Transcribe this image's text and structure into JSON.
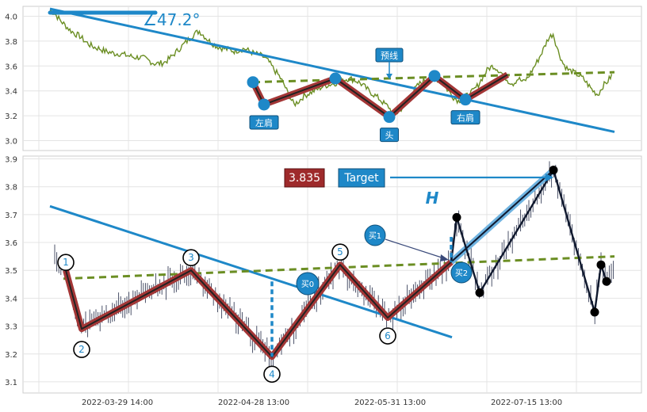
{
  "chart_data": [
    {
      "type": "line",
      "panel": "top",
      "ylim": [
        2.92,
        4.08
      ],
      "yticks": [
        "3.0",
        "3.2",
        "3.4",
        "3.6",
        "3.8",
        "4.0"
      ],
      "angle_label": "∠47.2°",
      "series": [
        {
          "kind": "price",
          "color": "#6b8e23",
          "values": [
            4.05,
            4.02,
            3.97,
            3.93,
            3.89,
            3.86,
            3.84,
            3.8,
            3.77,
            3.75,
            3.74,
            3.72,
            3.71,
            3.7,
            3.7,
            3.69,
            3.68,
            3.67,
            3.67,
            3.66,
            3.64,
            3.62,
            3.62,
            3.63,
            3.66,
            3.7,
            3.74,
            3.78,
            3.82,
            3.86,
            3.88,
            3.84,
            3.8,
            3.77,
            3.75,
            3.74,
            3.73,
            3.72,
            3.73,
            3.74,
            3.72,
            3.7,
            3.69,
            3.67,
            3.63,
            3.57,
            3.52,
            3.45,
            3.36,
            3.29,
            3.32,
            3.36,
            3.38,
            3.4,
            3.42,
            3.44,
            3.45,
            3.46,
            3.47,
            3.49,
            3.5,
            3.49,
            3.47,
            3.44,
            3.4,
            3.37,
            3.34,
            3.3,
            3.27,
            3.21,
            3.23,
            3.28,
            3.34,
            3.4,
            3.45,
            3.48,
            3.5,
            3.51,
            3.49,
            3.45,
            3.4,
            3.35,
            3.32,
            3.34,
            3.37,
            3.4,
            3.45,
            3.52,
            3.58,
            3.6,
            3.57,
            3.53,
            3.48,
            3.46,
            3.5,
            3.47,
            3.51,
            3.58,
            3.65,
            3.73,
            3.82,
            3.86,
            3.72,
            3.62,
            3.57,
            3.55,
            3.53,
            3.5,
            3.45,
            3.4,
            3.37,
            3.44,
            3.48,
            3.54
          ]
        }
      ],
      "trend_line": {
        "start": 4.06,
        "end": 3.07
      },
      "neckline": {
        "start": 3.47,
        "end": 3.55
      },
      "pattern_points": [
        {
          "label": "",
          "y": 3.47
        },
        {
          "label": "左肩",
          "y": 3.29
        },
        {
          "label": "",
          "y": 3.5
        },
        {
          "label": "头",
          "y": 3.19
        },
        {
          "label": "",
          "y": 3.52
        },
        {
          "label": "右肩",
          "y": 3.33
        },
        {
          "label": "",
          "y": 3.53
        }
      ],
      "callout": "预线"
    },
    {
      "type": "bar",
      "panel": "bottom",
      "xlabels": [
        "2022-03-29 14:00",
        "2022-04-28 13:00",
        "2022-05-31 13:00",
        "2022-07-15 13:00"
      ],
      "ylim": [
        3.06,
        3.91
      ],
      "yticks": [
        "3.1",
        "3.2",
        "3.3",
        "3.4",
        "3.5",
        "3.6",
        "3.7",
        "3.8",
        "3.9"
      ],
      "price_label": "3.835",
      "target_label": "Target",
      "h_label": "H",
      "trend_line": {
        "start": 3.73,
        "end": 3.26
      },
      "neckline": {
        "start": 3.47,
        "end": 3.55
      },
      "pattern_points": [
        {
          "label": "1",
          "y": 3.5
        },
        {
          "label": "2",
          "y": 3.29
        },
        {
          "label": "3",
          "y": 3.5
        },
        {
          "label": "4",
          "y": 3.19
        },
        {
          "label": "5",
          "y": 3.52
        },
        {
          "label": "6",
          "y": 3.33
        },
        {
          "label": "",
          "y": 3.53
        }
      ],
      "projection_points": [
        3.53,
        3.69,
        3.42,
        3.86,
        3.35,
        3.52,
        3.46
      ],
      "signals": [
        "买0",
        "买1",
        "买2"
      ]
    }
  ]
}
